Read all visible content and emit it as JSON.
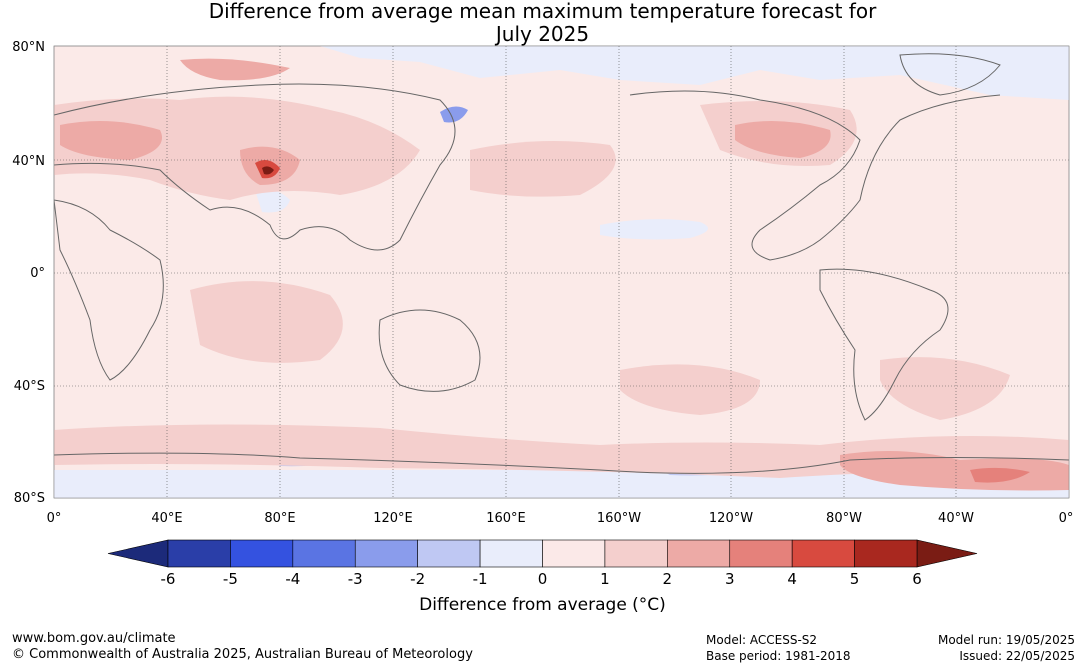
{
  "title_line1": "Difference from average mean maximum temperature forecast for",
  "title_line2": "July 2025",
  "lat_labels": [
    "80°N",
    "40°N",
    "0°",
    "40°S",
    "80°S"
  ],
  "lon_labels": [
    "0°",
    "40°E",
    "80°E",
    "120°E",
    "160°E",
    "160°W",
    "120°W",
    "80°W",
    "40°W",
    "0°"
  ],
  "colorbar": {
    "ticks": [
      "-6",
      "-5",
      "-4",
      "-3",
      "-2",
      "-1",
      "0",
      "1",
      "2",
      "3",
      "4",
      "5",
      "6"
    ],
    "colors": [
      "#2a3ea8",
      "#3452e0",
      "#5a74e3",
      "#8a9cec",
      "#bfc8f3",
      "#e9edfb",
      "#fbe9e8",
      "#f4cfcd",
      "#edaaa6",
      "#e5817b",
      "#d84a3f",
      "#a9281f"
    ],
    "under_color": "#1c2a7a",
    "over_color": "#7a1c14",
    "label": "Difference from average (°C)"
  },
  "footer": {
    "url": "www.bom.gov.au/climate",
    "copyright": "© Commonwealth of Australia 2025, Australian Bureau of Meteorology",
    "model": "Model: ACCESS-S2",
    "base_period": "Base period: 1981-2018",
    "model_run": "Model run: 19/05/2025",
    "issued": "Issued: 22/05/2025"
  }
}
